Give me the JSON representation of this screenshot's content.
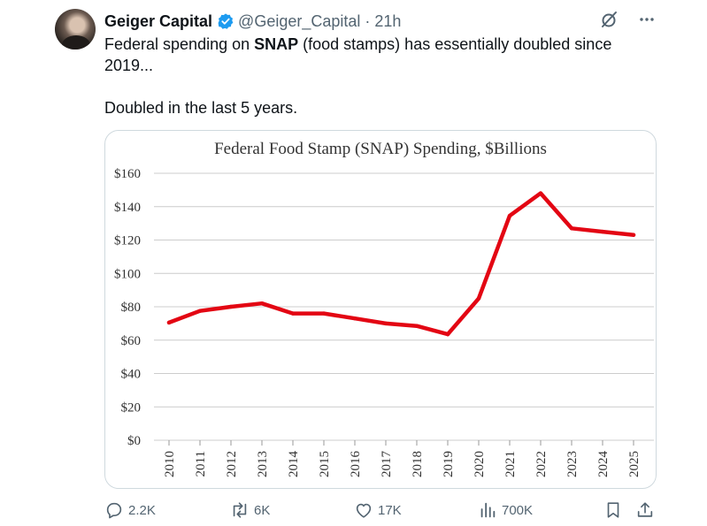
{
  "tweet": {
    "author_name": "Geiger Capital",
    "handle": "@Geiger_Capital",
    "separator": "·",
    "time": "21h",
    "text_line1_pre": "Federal spending on ",
    "text_line1_bold": "SNAP",
    "text_line1_post": " (food stamps) has essentially doubled since 2019...",
    "text_line2": "Doubled in the last 5 years."
  },
  "icons": {
    "verified": "verified-badge-icon",
    "grok": "grok-icon",
    "more": "more-icon",
    "reply": "reply-icon",
    "retweet": "retweet-icon",
    "like": "like-icon",
    "views": "views-icon",
    "bookmark": "bookmark-icon",
    "share": "share-icon"
  },
  "colors": {
    "verified_blue": "#1d9bf0",
    "text_primary": "#0f1419",
    "text_secondary": "#536471",
    "series_line": "#e30613",
    "gridline": "#cccccc",
    "card_border": "#cfd9de"
  },
  "actions": {
    "replies": "2.2K",
    "retweets": "6K",
    "likes": "17K",
    "views": "700K"
  },
  "chart_data": {
    "type": "line",
    "title": "Federal Food Stamp (SNAP) Spending, $Billions",
    "xlabel": "",
    "ylabel": "",
    "x": [
      "2010",
      "2011",
      "2012",
      "2013",
      "2014",
      "2015",
      "2016",
      "2017",
      "2018",
      "2019",
      "2020",
      "2021",
      "2022",
      "2023",
      "2024",
      "2025"
    ],
    "series": [
      {
        "name": "SNAP Spending",
        "values": [
          70.5,
          77.5,
          80,
          82,
          76,
          76,
          73,
          70,
          68.5,
          63.5,
          85,
          134.5,
          148,
          127,
          125,
          123
        ]
      }
    ],
    "ylim": [
      0,
      160
    ],
    "yticks": [
      0,
      20,
      40,
      60,
      80,
      100,
      120,
      140,
      160
    ],
    "ytick_labels": [
      "$0",
      "$20",
      "$40",
      "$60",
      "$80",
      "$100",
      "$120",
      "$140",
      "$160"
    ],
    "grid": true
  }
}
